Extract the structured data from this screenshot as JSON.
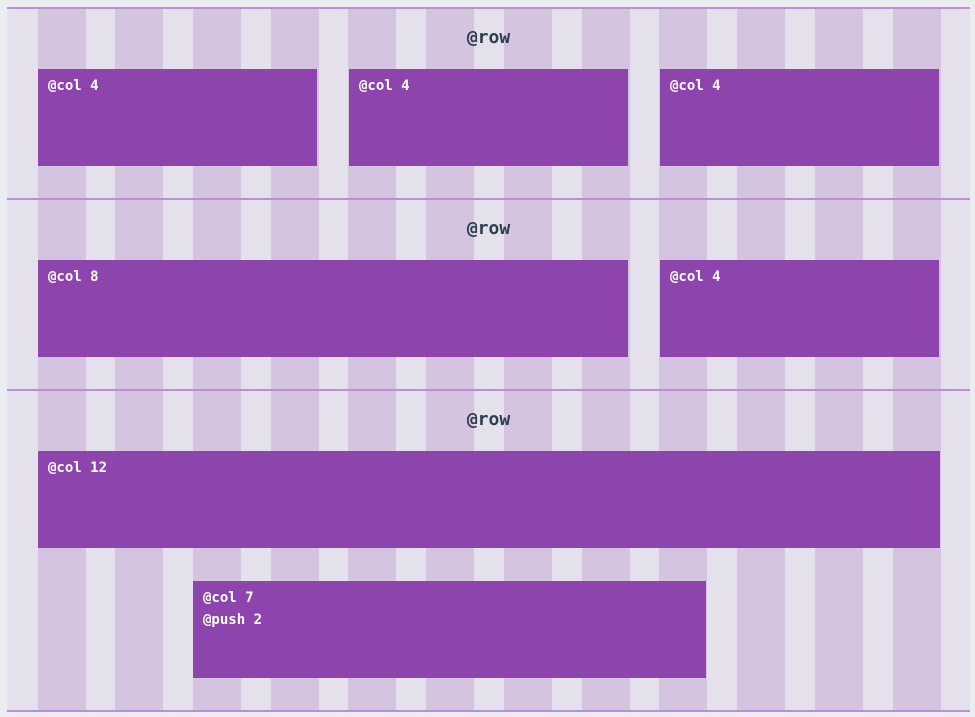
{
  "rows": [
    {
      "label": "@row",
      "columns": [
        {
          "label": "@col 4"
        },
        {
          "label": "@col 4"
        },
        {
          "label": "@col 4"
        }
      ]
    },
    {
      "label": "@row",
      "columns": [
        {
          "label": "@col 8"
        },
        {
          "label": "@col 4"
        }
      ]
    },
    {
      "label": "@row",
      "columns": [
        {
          "label": "@col 12"
        },
        {
          "label": "@col 7",
          "modifier": "@push 2"
        }
      ]
    }
  ],
  "colors": {
    "column": "#8e44ad",
    "grid_stripe": "#d4c4e0",
    "row_line": "#bb8fd3",
    "background": "#e4e1ed"
  }
}
